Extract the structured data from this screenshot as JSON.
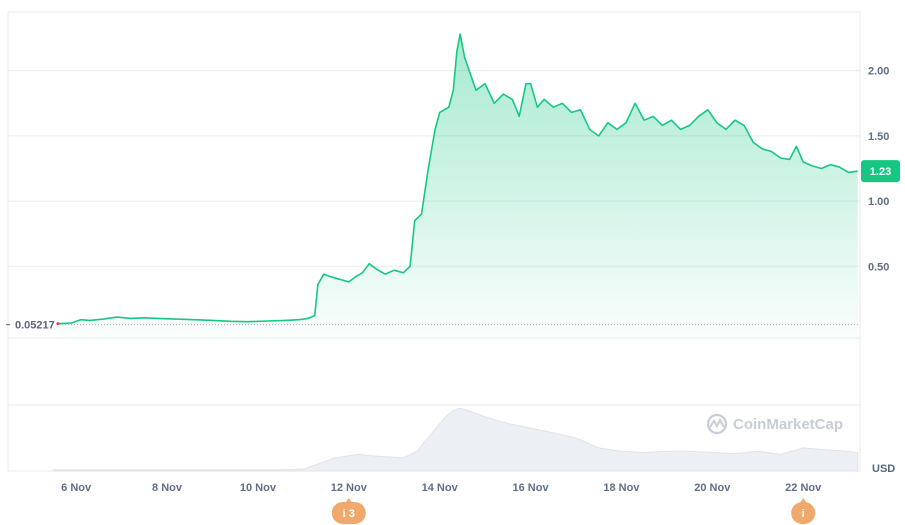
{
  "chart_data": {
    "type": "area",
    "unit_label": "USD",
    "watermark": "CoinMarketCap",
    "baseline_value": 0.05217,
    "baseline_label": "0.05217",
    "current_price_label": "1.23",
    "current_price": 1.23,
    "ylim": [
      -0.05,
      2.45
    ],
    "y_ticks": [
      {
        "value": 0.5,
        "label": "0.50"
      },
      {
        "value": 1.0,
        "label": "1.00"
      },
      {
        "value": 1.5,
        "label": "1.50"
      },
      {
        "value": 2.0,
        "label": "2.00"
      }
    ],
    "xlim": [
      4.5,
      23.25
    ],
    "x_ticks": [
      {
        "value": 6,
        "label": "6 Nov"
      },
      {
        "value": 8,
        "label": "8 Nov"
      },
      {
        "value": 10,
        "label": "10 Nov"
      },
      {
        "value": 12,
        "label": "12 Nov"
      },
      {
        "value": 14,
        "label": "14 Nov"
      },
      {
        "value": 16,
        "label": "16 Nov"
      },
      {
        "value": 18,
        "label": "18 Nov"
      },
      {
        "value": 20,
        "label": "20 Nov"
      },
      {
        "value": 22,
        "label": "22 Nov"
      }
    ],
    "series": [
      {
        "values": [
          [
            5.6,
            0.06
          ],
          [
            5.9,
            0.065
          ],
          [
            6.1,
            0.09
          ],
          [
            6.3,
            0.085
          ],
          [
            6.6,
            0.095
          ],
          [
            6.9,
            0.11
          ],
          [
            7.2,
            0.1
          ],
          [
            7.5,
            0.105
          ],
          [
            7.8,
            0.1
          ],
          [
            8.2,
            0.095
          ],
          [
            8.6,
            0.09
          ],
          [
            9.0,
            0.085
          ],
          [
            9.4,
            0.078
          ],
          [
            9.8,
            0.075
          ],
          [
            10.2,
            0.08
          ],
          [
            10.6,
            0.085
          ],
          [
            10.9,
            0.09
          ],
          [
            11.1,
            0.1
          ],
          [
            11.25,
            0.12
          ],
          [
            11.32,
            0.36
          ],
          [
            11.45,
            0.44
          ],
          [
            11.6,
            0.42
          ],
          [
            11.8,
            0.4
          ],
          [
            12.0,
            0.38
          ],
          [
            12.15,
            0.42
          ],
          [
            12.3,
            0.45
          ],
          [
            12.45,
            0.52
          ],
          [
            12.6,
            0.48
          ],
          [
            12.8,
            0.44
          ],
          [
            13.0,
            0.47
          ],
          [
            13.2,
            0.45
          ],
          [
            13.35,
            0.5
          ],
          [
            13.45,
            0.85
          ],
          [
            13.6,
            0.9
          ],
          [
            13.75,
            1.25
          ],
          [
            13.9,
            1.55
          ],
          [
            14.0,
            1.68
          ],
          [
            14.1,
            1.7
          ],
          [
            14.2,
            1.72
          ],
          [
            14.3,
            1.85
          ],
          [
            14.38,
            2.15
          ],
          [
            14.45,
            2.28
          ],
          [
            14.55,
            2.1
          ],
          [
            14.65,
            2.0
          ],
          [
            14.8,
            1.85
          ],
          [
            15.0,
            1.9
          ],
          [
            15.2,
            1.75
          ],
          [
            15.4,
            1.82
          ],
          [
            15.6,
            1.78
          ],
          [
            15.75,
            1.65
          ],
          [
            15.9,
            1.9
          ],
          [
            16.0,
            1.9
          ],
          [
            16.15,
            1.72
          ],
          [
            16.3,
            1.78
          ],
          [
            16.5,
            1.72
          ],
          [
            16.7,
            1.75
          ],
          [
            16.9,
            1.68
          ],
          [
            17.1,
            1.7
          ],
          [
            17.3,
            1.55
          ],
          [
            17.5,
            1.5
          ],
          [
            17.7,
            1.6
          ],
          [
            17.9,
            1.55
          ],
          [
            18.1,
            1.6
          ],
          [
            18.3,
            1.75
          ],
          [
            18.5,
            1.62
          ],
          [
            18.7,
            1.65
          ],
          [
            18.9,
            1.58
          ],
          [
            19.1,
            1.62
          ],
          [
            19.3,
            1.55
          ],
          [
            19.5,
            1.58
          ],
          [
            19.7,
            1.65
          ],
          [
            19.9,
            1.7
          ],
          [
            20.1,
            1.6
          ],
          [
            20.3,
            1.55
          ],
          [
            20.5,
            1.62
          ],
          [
            20.7,
            1.58
          ],
          [
            20.9,
            1.45
          ],
          [
            21.1,
            1.4
          ],
          [
            21.3,
            1.38
          ],
          [
            21.5,
            1.33
          ],
          [
            21.7,
            1.32
          ],
          [
            21.85,
            1.42
          ],
          [
            22.0,
            1.3
          ],
          [
            22.2,
            1.27
          ],
          [
            22.4,
            1.25
          ],
          [
            22.6,
            1.28
          ],
          [
            22.8,
            1.26
          ],
          [
            23.0,
            1.22
          ],
          [
            23.2,
            1.23
          ]
        ]
      }
    ],
    "volume": [
      [
        5.5,
        0.02
      ],
      [
        6.5,
        0.02
      ],
      [
        7.5,
        0.02
      ],
      [
        8.5,
        0.02
      ],
      [
        9.5,
        0.02
      ],
      [
        10.5,
        0.02
      ],
      [
        11.0,
        0.03
      ],
      [
        11.3,
        0.1
      ],
      [
        11.7,
        0.2
      ],
      [
        12.2,
        0.25
      ],
      [
        12.7,
        0.22
      ],
      [
        13.2,
        0.2
      ],
      [
        13.5,
        0.3
      ],
      [
        13.8,
        0.55
      ],
      [
        14.1,
        0.8
      ],
      [
        14.3,
        0.92
      ],
      [
        14.45,
        0.95
      ],
      [
        14.7,
        0.9
      ],
      [
        15.0,
        0.82
      ],
      [
        15.5,
        0.72
      ],
      [
        16.0,
        0.65
      ],
      [
        16.5,
        0.58
      ],
      [
        17.0,
        0.5
      ],
      [
        17.5,
        0.35
      ],
      [
        18.0,
        0.3
      ],
      [
        18.5,
        0.28
      ],
      [
        19.0,
        0.3
      ],
      [
        19.5,
        0.3
      ],
      [
        20.0,
        0.28
      ],
      [
        20.5,
        0.26
      ],
      [
        21.0,
        0.3
      ],
      [
        21.5,
        0.25
      ],
      [
        22.0,
        0.35
      ],
      [
        22.5,
        0.32
      ],
      [
        23.0,
        0.3
      ],
      [
        23.2,
        0.28
      ]
    ],
    "annotations": [
      {
        "x": 12,
        "label": "i 3"
      },
      {
        "x": 22,
        "label": "i"
      }
    ],
    "colors": {
      "line": "#16c784",
      "area_top": "#16c784",
      "grid": "#e8ebef",
      "badge": "#16c784",
      "annotation": "#f0a86c",
      "volume": "#eceff3",
      "baseline": "#a6b0c3",
      "start_marker": "#ea3943"
    },
    "grid": true
  }
}
